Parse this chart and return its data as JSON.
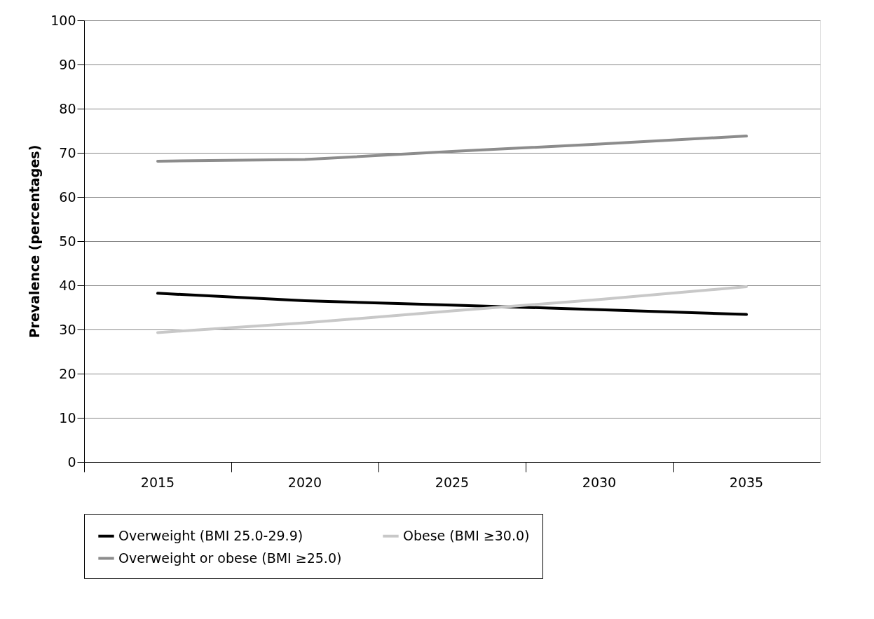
{
  "chart_data": {
    "type": "line",
    "ylabel": "Prevalence (percentages)",
    "categories": [
      "2015",
      "2020",
      "2025",
      "2030",
      "2035"
    ],
    "ylim": [
      0,
      100
    ],
    "yticks": [
      0,
      10,
      20,
      30,
      40,
      50,
      60,
      70,
      80,
      90,
      100
    ],
    "grid": "y",
    "legend": "bottom",
    "marker": "none",
    "line_style": "solid",
    "series": [
      {
        "name": "Overweight (BMI 25.0-29.9)",
        "color": "#000000",
        "values": [
          38.2,
          36.5,
          35.5,
          34.5,
          33.4
        ]
      },
      {
        "name": "Obese (BMI ≥30.0)",
        "color": "#c8c8c8",
        "values": [
          29.3,
          31.5,
          34.2,
          36.8,
          39.7
        ]
      },
      {
        "name": "Overweight or obese (BMI ≥25.0)",
        "color": "#8c8c8c",
        "values": [
          68.1,
          68.5,
          70.3,
          72.0,
          73.8
        ]
      }
    ]
  }
}
